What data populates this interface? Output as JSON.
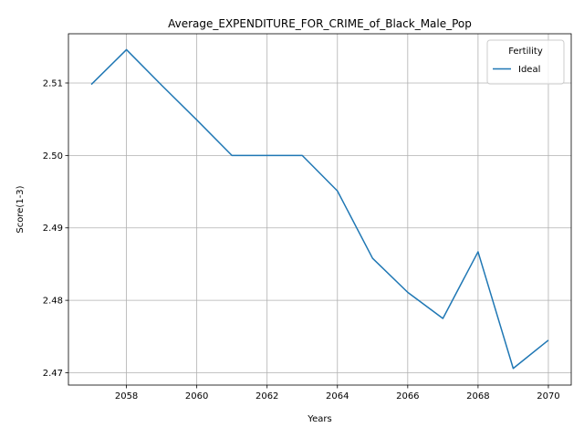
{
  "chart_data": {
    "type": "line",
    "title": "Average_EXPENDITURE_FOR_CRIME_of_Black_Male_Pop",
    "xlabel": "Years",
    "ylabel": "Score(1-3)",
    "x": [
      2057,
      2058,
      2059,
      2060,
      2061,
      2062,
      2063,
      2064,
      2065,
      2066,
      2067,
      2068,
      2069,
      2070
    ],
    "xlim": [
      2056.35,
      2070.65
    ],
    "ylim": [
      2.4683,
      2.5168
    ],
    "x_ticks": [
      2058,
      2060,
      2062,
      2064,
      2066,
      2068,
      2070
    ],
    "y_ticks": [
      2.47,
      2.48,
      2.49,
      2.5,
      2.51
    ],
    "x_tick_labels": [
      "2058",
      "2060",
      "2062",
      "2064",
      "2066",
      "2068",
      "2070"
    ],
    "y_tick_labels": [
      "2.47",
      "2.48",
      "2.49",
      "2.50",
      "2.51"
    ],
    "grid": true,
    "legend": {
      "title": "Fertility",
      "placement": "top-right"
    },
    "series": [
      {
        "name": "Ideal",
        "color": "#1f77b4",
        "values": [
          2.5098,
          2.5146,
          2.5097,
          2.5049,
          2.5,
          2.5,
          2.5,
          2.4951,
          2.4858,
          2.4811,
          2.4775,
          2.4867,
          2.4706,
          2.4745
        ]
      }
    ]
  }
}
